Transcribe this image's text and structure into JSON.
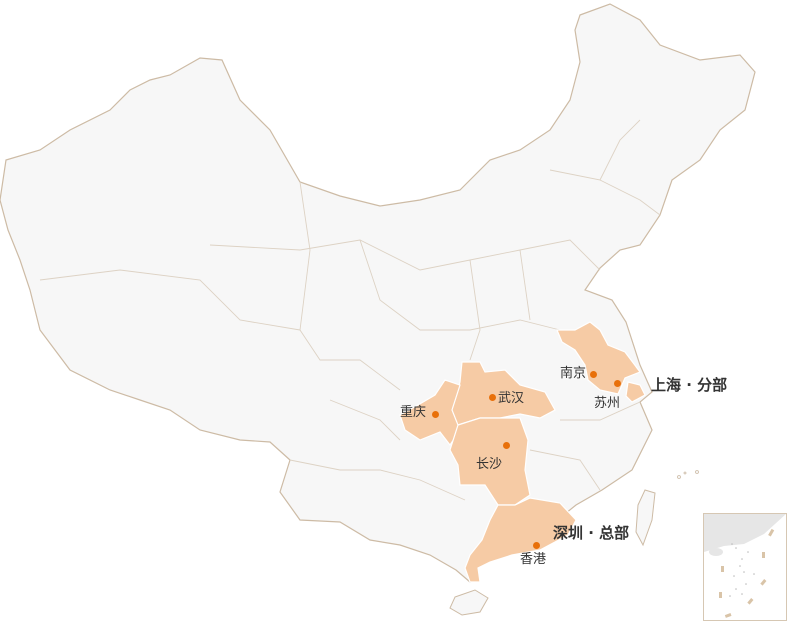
{
  "map": {
    "colors": {
      "land": "#f7f7f7",
      "border": "#cdbba5",
      "highlight": "#f6cba5",
      "city_dot": "#e8700a",
      "text": "#333333"
    },
    "offices": [
      {
        "label": "深圳 · 总部",
        "type": "headquarters"
      },
      {
        "label": "上海 · 分部",
        "type": "branch"
      }
    ],
    "cities": [
      {
        "name": "南京"
      },
      {
        "name": "苏州"
      },
      {
        "name": "武汉"
      },
      {
        "name": "重庆"
      },
      {
        "name": "长沙"
      },
      {
        "name": "香港"
      }
    ],
    "inset": "south-china-sea-islands"
  }
}
